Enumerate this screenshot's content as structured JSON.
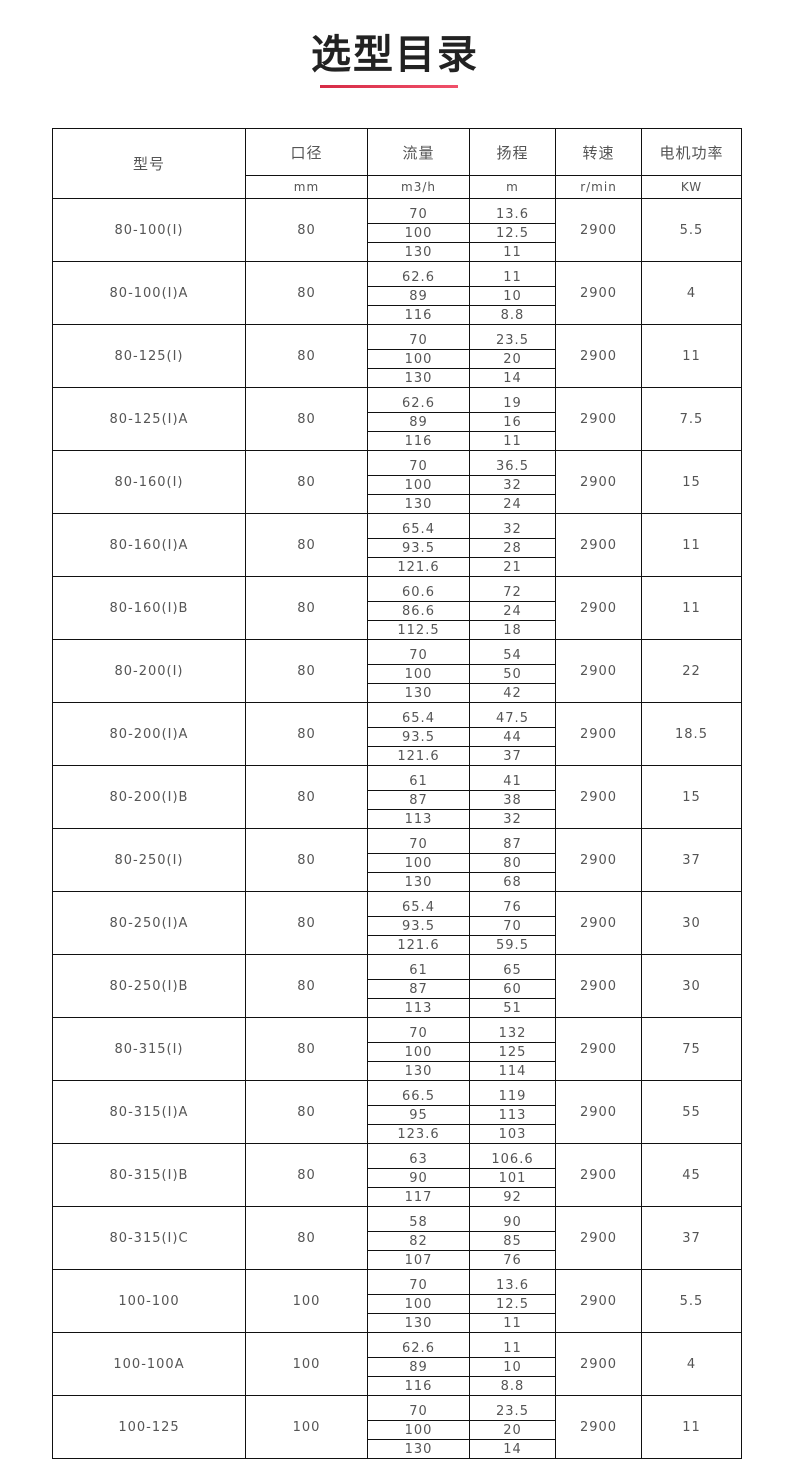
{
  "title": "选型目录",
  "accent_color": "#e0334f",
  "headers": [
    "型号",
    "口径",
    "流量",
    "扬程",
    "转速",
    "电机功率"
  ],
  "units": [
    "mm",
    "m3/h",
    "m",
    "r/min",
    "KW"
  ],
  "rows": [
    {
      "model": "80-100(I)",
      "dia": "80",
      "flow": [
        "70",
        "100",
        "130"
      ],
      "head": [
        "13.6",
        "12.5",
        "11"
      ],
      "speed": "2900",
      "power": "5.5"
    },
    {
      "model": "80-100(I)A",
      "dia": "80",
      "flow": [
        "62.6",
        "89",
        "116"
      ],
      "head": [
        "11",
        "10",
        "8.8"
      ],
      "speed": "2900",
      "power": "4"
    },
    {
      "model": "80-125(I)",
      "dia": "80",
      "flow": [
        "70",
        "100",
        "130"
      ],
      "head": [
        "23.5",
        "20",
        "14"
      ],
      "speed": "2900",
      "power": "11"
    },
    {
      "model": "80-125(I)A",
      "dia": "80",
      "flow": [
        "62.6",
        "89",
        "116"
      ],
      "head": [
        "19",
        "16",
        "11"
      ],
      "speed": "2900",
      "power": "7.5"
    },
    {
      "model": "80-160(I)",
      "dia": "80",
      "flow": [
        "70",
        "100",
        "130"
      ],
      "head": [
        "36.5",
        "32",
        "24"
      ],
      "speed": "2900",
      "power": "15"
    },
    {
      "model": "80-160(I)A",
      "dia": "80",
      "flow": [
        "65.4",
        "93.5",
        "121.6"
      ],
      "head": [
        "32",
        "28",
        "21"
      ],
      "speed": "2900",
      "power": "11"
    },
    {
      "model": "80-160(I)B",
      "dia": "80",
      "flow": [
        "60.6",
        "86.6",
        "112.5"
      ],
      "head": [
        "72",
        "24",
        "18"
      ],
      "speed": "2900",
      "power": "11"
    },
    {
      "model": "80-200(I)",
      "dia": "80",
      "flow": [
        "70",
        "100",
        "130"
      ],
      "head": [
        "54",
        "50",
        "42"
      ],
      "speed": "2900",
      "power": "22"
    },
    {
      "model": "80-200(I)A",
      "dia": "80",
      "flow": [
        "65.4",
        "93.5",
        "121.6"
      ],
      "head": [
        "47.5",
        "44",
        "37"
      ],
      "speed": "2900",
      "power": "18.5"
    },
    {
      "model": "80-200(I)B",
      "dia": "80",
      "flow": [
        "61",
        "87",
        "113"
      ],
      "head": [
        "41",
        "38",
        "32"
      ],
      "speed": "2900",
      "power": "15"
    },
    {
      "model": "80-250(I)",
      "dia": "80",
      "flow": [
        "70",
        "100",
        "130"
      ],
      "head": [
        "87",
        "80",
        "68"
      ],
      "speed": "2900",
      "power": "37"
    },
    {
      "model": "80-250(I)A",
      "dia": "80",
      "flow": [
        "65.4",
        "93.5",
        "121.6"
      ],
      "head": [
        "76",
        "70",
        "59.5"
      ],
      "speed": "2900",
      "power": "30"
    },
    {
      "model": "80-250(I)B",
      "dia": "80",
      "flow": [
        "61",
        "87",
        "113"
      ],
      "head": [
        "65",
        "60",
        "51"
      ],
      "speed": "2900",
      "power": "30"
    },
    {
      "model": "80-315(I)",
      "dia": "80",
      "flow": [
        "70",
        "100",
        "130"
      ],
      "head": [
        "132",
        "125",
        "114"
      ],
      "speed": "2900",
      "power": "75"
    },
    {
      "model": "80-315(I)A",
      "dia": "80",
      "flow": [
        "66.5",
        "95",
        "123.6"
      ],
      "head": [
        "119",
        "113",
        "103"
      ],
      "speed": "2900",
      "power": "55"
    },
    {
      "model": "80-315(I)B",
      "dia": "80",
      "flow": [
        "63",
        "90",
        "117"
      ],
      "head": [
        "106.6",
        "101",
        "92"
      ],
      "speed": "2900",
      "power": "45"
    },
    {
      "model": "80-315(I)C",
      "dia": "80",
      "flow": [
        "58",
        "82",
        "107"
      ],
      "head": [
        "90",
        "85",
        "76"
      ],
      "speed": "2900",
      "power": "37"
    },
    {
      "model": "100-100",
      "dia": "100",
      "flow": [
        "70",
        "100",
        "130"
      ],
      "head": [
        "13.6",
        "12.5",
        "11"
      ],
      "speed": "2900",
      "power": "5.5"
    },
    {
      "model": "100-100A",
      "dia": "100",
      "flow": [
        "62.6",
        "89",
        "116"
      ],
      "head": [
        "11",
        "10",
        "8.8"
      ],
      "speed": "2900",
      "power": "4"
    },
    {
      "model": "100-125",
      "dia": "100",
      "flow": [
        "70",
        "100",
        "130"
      ],
      "head": [
        "23.5",
        "20",
        "14"
      ],
      "speed": "2900",
      "power": "11"
    }
  ]
}
